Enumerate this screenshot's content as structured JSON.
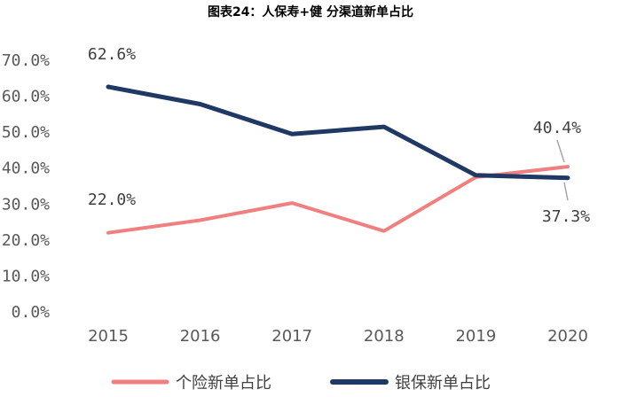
{
  "chart_data": {
    "type": "line",
    "title": "图表24：人保寿+健 分渠道新单占比",
    "categories": [
      "2015",
      "2016",
      "2017",
      "2018",
      "2019",
      "2020"
    ],
    "yticks": [
      "0.0%",
      "10.0%",
      "20.0%",
      "30.0%",
      "40.0%",
      "50.0%",
      "60.0%",
      "70.0%"
    ],
    "ylim": [
      0,
      70
    ],
    "grid": false,
    "legend_position": "bottom",
    "series": [
      {
        "name": "个险新单占比",
        "color": "#F08080",
        "values": [
          22.0,
          25.5,
          30.3,
          22.5,
          37.5,
          40.4
        ]
      },
      {
        "name": "银保新单占比",
        "color": "#1F3864",
        "values": [
          62.6,
          57.8,
          49.5,
          51.5,
          38.0,
          37.3
        ]
      }
    ],
    "data_labels": [
      {
        "series": 1,
        "index": 0,
        "text": "62.6%"
      },
      {
        "series": 0,
        "index": 0,
        "text": "22.0%"
      },
      {
        "series": 0,
        "index": 5,
        "text": "40.4%"
      },
      {
        "series": 1,
        "index": 5,
        "text": "37.3%"
      }
    ]
  }
}
